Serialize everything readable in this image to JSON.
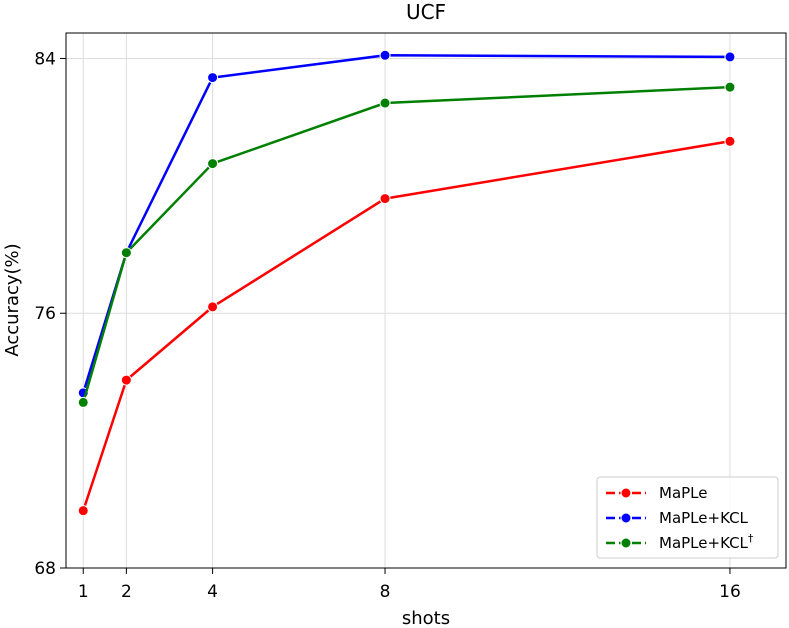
{
  "chart_data": {
    "type": "line",
    "title": "UCF",
    "xlabel": "shots",
    "ylabel": "Accuracy(%)",
    "x": [
      1,
      2,
      4,
      8,
      16
    ],
    "x_tick_labels": [
      "1",
      "2",
      "4",
      "8",
      "16"
    ],
    "xlim": [
      0.6,
      17.3
    ],
    "y_ticks": [
      68,
      76,
      84
    ],
    "y_tick_labels": [
      "68",
      "76",
      "84"
    ],
    "ylim": [
      68,
      84.8
    ],
    "grid": true,
    "legend_position": "lower-right",
    "series": [
      {
        "name": "MaPLe",
        "color": "#ff0000",
        "values": [
          69.8,
          73.9,
          76.2,
          79.6,
          81.4
        ]
      },
      {
        "name": "MaPLe+KCL",
        "color": "#0000ff",
        "values": [
          73.5,
          77.9,
          83.4,
          84.1,
          84.05
        ]
      },
      {
        "name": "MaPLe+KCL",
        "name_superscript": "†",
        "color": "#008000",
        "values": [
          73.2,
          77.9,
          80.7,
          82.6,
          83.1
        ]
      }
    ]
  }
}
